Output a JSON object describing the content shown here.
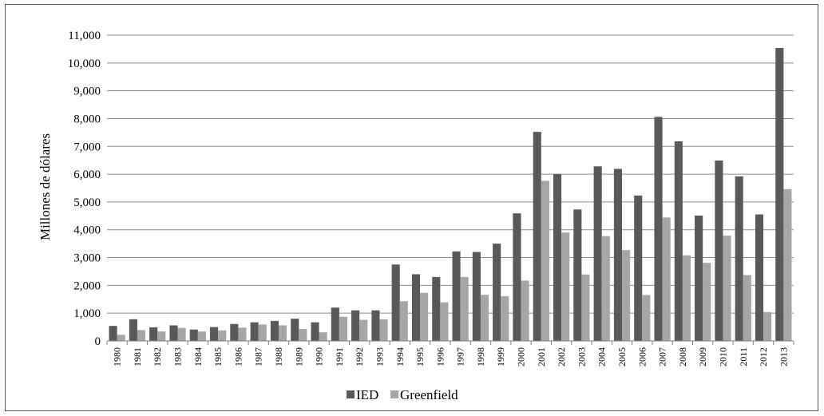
{
  "chart_data": {
    "type": "bar",
    "title": "",
    "xlabel": "",
    "ylabel": "Millones de dólares",
    "ylim": [
      0,
      11000
    ],
    "yticks": [
      0,
      1000,
      2000,
      3000,
      4000,
      5000,
      6000,
      7000,
      8000,
      9000,
      10000,
      11000
    ],
    "ytick_labels": [
      "0",
      "1,000",
      "2,000",
      "3,000",
      "4,000",
      "5,000",
      "6,000",
      "7,000",
      "8,000",
      "9,000",
      "10,000",
      "11,000"
    ],
    "grid": true,
    "legend_position": "bottom",
    "categories": [
      "1980",
      "1981",
      "1982",
      "1983",
      "1984",
      "1985",
      "1986",
      "1987",
      "1988",
      "1989",
      "1990",
      "1991",
      "1992",
      "1993",
      "1994",
      "1995",
      "1996",
      "1997",
      "1998",
      "1999",
      "2000",
      "2001",
      "2002",
      "2003",
      "2004",
      "2005",
      "2006",
      "2007",
      "2008",
      "2009",
      "2010",
      "2011",
      "2012",
      "2013"
    ],
    "series": [
      {
        "name": "IED",
        "color": "#595959",
        "values": [
          540,
          780,
          490,
          560,
          410,
          500,
          610,
          670,
          720,
          800,
          670,
          1200,
          1100,
          1100,
          2750,
          2400,
          2300,
          3220,
          3200,
          3500,
          4590,
          7520,
          6000,
          4730,
          6280,
          6190,
          5230,
          8060,
          7180,
          4510,
          6490,
          5920,
          4550,
          10540
        ]
      },
      {
        "name": "Greenfield",
        "color": "#a6a6a6",
        "values": [
          220,
          390,
          340,
          470,
          340,
          380,
          480,
          590,
          560,
          430,
          310,
          870,
          760,
          780,
          1430,
          1730,
          1390,
          2300,
          1660,
          1610,
          2170,
          5760,
          3900,
          2390,
          3770,
          3270,
          1650,
          4440,
          3080,
          2810,
          3790,
          2370,
          1040,
          5460
        ]
      }
    ]
  }
}
